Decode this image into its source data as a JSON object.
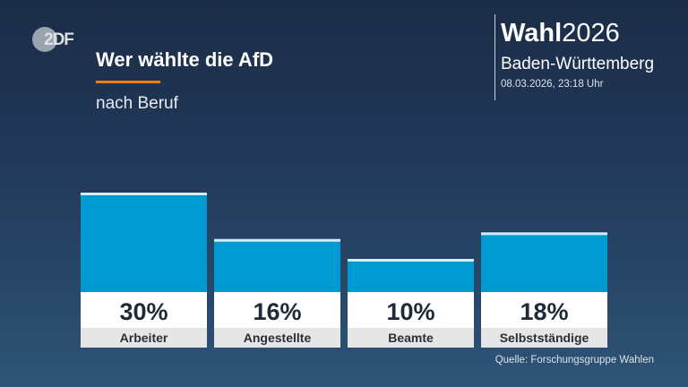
{
  "header": {
    "logo_text": "2DF",
    "title": "Wer wählte die AfD",
    "subtitle": "nach Beruf",
    "brand_bold": "Wahl",
    "brand_year": "2026",
    "region": "Baden-Württemberg",
    "timestamp": "08.03.2026, 23:18 Uhr"
  },
  "colors": {
    "bar": "#0099d2",
    "bar_cap": "#d4eef9",
    "value_box": "#ffffff",
    "category_box": "#e6e6e6",
    "accent_rule": "#f07d1a"
  },
  "chart_data": {
    "type": "bar",
    "title": "Wer wählte die AfD",
    "subtitle": "nach Beruf",
    "categories": [
      "Arbeiter",
      "Angestellte",
      "Beamte",
      "Selbstständige"
    ],
    "values": [
      30,
      16,
      10,
      18
    ],
    "value_labels": [
      "30%",
      "16%",
      "10%",
      "18%"
    ],
    "unit": "%",
    "xlabel": "",
    "ylabel": "",
    "grid": false,
    "legend": "none"
  },
  "footer": {
    "source": "Quelle: Forschungsgruppe Wahlen"
  }
}
